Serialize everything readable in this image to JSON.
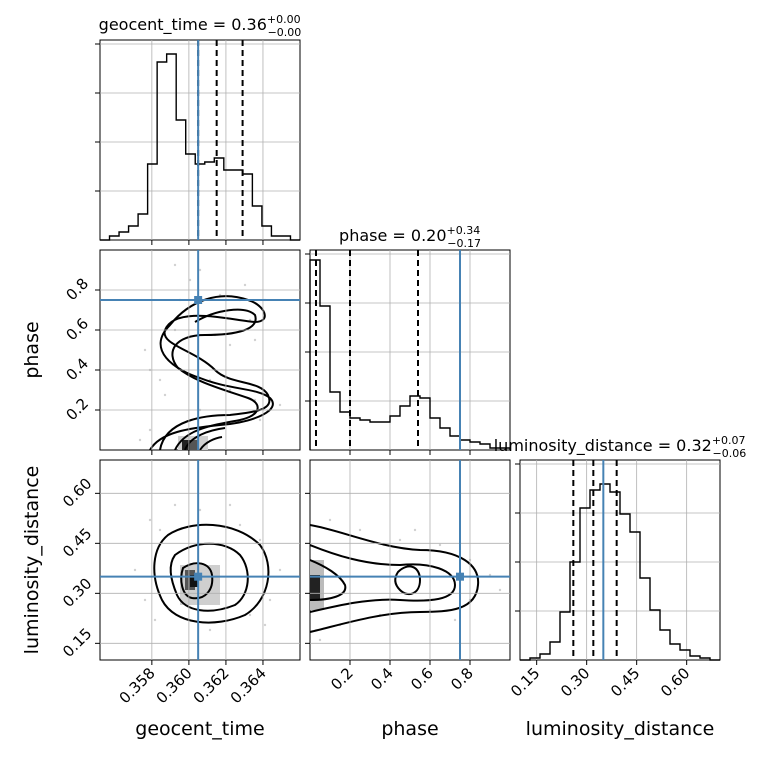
{
  "chart_data": {
    "type": "corner",
    "parameters": [
      {
        "name": "geocent_time",
        "axis_label": "geocent_time",
        "title_main": "geocent_time = 0.36",
        "title_plus": "+0.00",
        "title_minus": "−0.00",
        "range": [
          0.3552,
          0.366
        ],
        "ticks": [
          0.358,
          0.36,
          0.362,
          0.364
        ],
        "tick_labels": [
          "0.358",
          "0.360",
          "0.362",
          "0.364"
        ],
        "truth": 0.3605,
        "quantiles": [
          0.3605,
          0.3615,
          0.3629
        ]
      },
      {
        "name": "phase",
        "axis_label": "phase",
        "title_main": "phase = 0.20",
        "title_plus": "+0.34",
        "title_minus": "−0.17",
        "range": [
          0.0,
          1.0
        ],
        "ticks": [
          0.2,
          0.4,
          0.6,
          0.8
        ],
        "tick_labels": [
          "0.2",
          "0.4",
          "0.6",
          "0.8"
        ],
        "truth": 0.75,
        "quantiles": [
          0.03,
          0.2,
          0.54
        ]
      },
      {
        "name": "luminosity_distance",
        "axis_label": "luminosity_distance",
        "title_main": "luminosity_distance = 0.32",
        "title_plus": "+0.07",
        "title_minus": "−0.06",
        "range": [
          0.1,
          0.7
        ],
        "ticks": [
          0.15,
          0.3,
          0.45,
          0.6
        ],
        "tick_labels": [
          "0.15",
          "0.30",
          "0.45",
          "0.60"
        ],
        "truth": 0.35,
        "quantiles": [
          0.26,
          0.32,
          0.39
        ]
      }
    ],
    "histograms": [
      [
        0,
        0.02,
        0.04,
        0.07,
        0.13,
        0.38,
        0.89,
        0.93,
        0.6,
        0.43,
        0.38,
        0.39,
        0.41,
        0.35,
        0.35,
        0.33,
        0.17,
        0.07,
        0.02,
        0.02,
        0
      ],
      [
        0.95,
        0.72,
        0.29,
        0.19,
        0.16,
        0.15,
        0.14,
        0.14,
        0.17,
        0.22,
        0.27,
        0.26,
        0.16,
        0.11,
        0.07,
        0.05,
        0.04,
        0.03,
        0.01,
        0.01
      ],
      [
        0,
        0.01,
        0.03,
        0.09,
        0.24,
        0.49,
        0.76,
        0.85,
        0.88,
        0.84,
        0.73,
        0.64,
        0.41,
        0.25,
        0.15,
        0.08,
        0.05,
        0.02,
        0.01,
        0
      ]
    ],
    "truth_color": "#4682b4",
    "line_color": "#000000",
    "grid": true
  }
}
